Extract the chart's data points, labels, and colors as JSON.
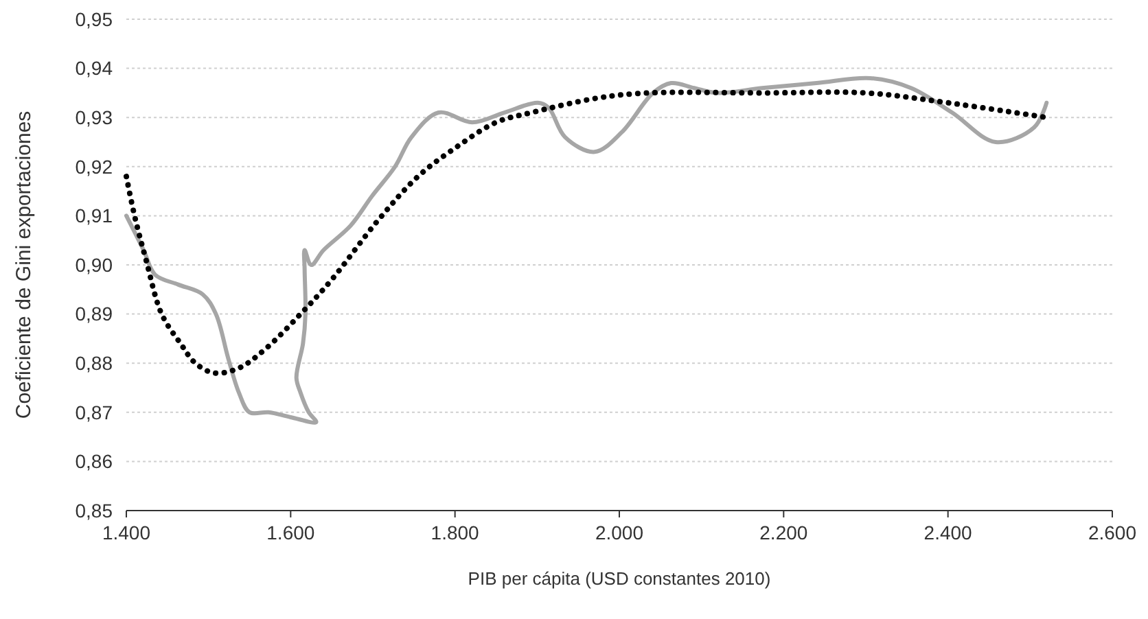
{
  "chart_data": {
    "type": "line",
    "xlabel": "PIB per cápita (USD constantes 2010)",
    "ylabel": "Coeficiente de Gini exportaciones",
    "xlim": [
      1400,
      2600
    ],
    "xticks": [
      {
        "value": 1400,
        "label": "1.400"
      },
      {
        "value": 1600,
        "label": "1.600"
      },
      {
        "value": 1800,
        "label": "1.800"
      },
      {
        "value": 2000,
        "label": "2.000"
      },
      {
        "value": 2200,
        "label": "2.200"
      },
      {
        "value": 2400,
        "label": "2.400"
      },
      {
        "value": 2600,
        "label": "2.600"
      }
    ],
    "ylim": [
      0.85,
      0.95
    ],
    "yticks": [
      {
        "value": 0.85,
        "label": "0,85"
      },
      {
        "value": 0.86,
        "label": "0,86"
      },
      {
        "value": 0.87,
        "label": "0,87"
      },
      {
        "value": 0.88,
        "label": "0,88"
      },
      {
        "value": 0.89,
        "label": "0,89"
      },
      {
        "value": 0.9,
        "label": "0,90"
      },
      {
        "value": 0.91,
        "label": "0,91"
      },
      {
        "value": 0.92,
        "label": "0,92"
      },
      {
        "value": 0.93,
        "label": "0,93"
      },
      {
        "value": 0.94,
        "label": "0,94"
      },
      {
        "value": 0.95,
        "label": "0,95"
      }
    ],
    "grid": "y",
    "marker": "none",
    "series": [
      {
        "color": "#a6a6a6",
        "line_style": "solid",
        "x": [
          1400,
          1421,
          1435,
          1463,
          1493,
          1509,
          1524,
          1537,
          1550,
          1573,
          1600,
          1631,
          1622,
          1612,
          1607,
          1615,
          1618,
          1617,
          1617,
          1625,
          1640,
          1673,
          1699,
          1727,
          1747,
          1780,
          1821,
          1860,
          1901,
          1914,
          1934,
          1970,
          2003,
          2041,
          2063,
          2091,
          2119,
          2174,
          2240,
          2306,
          2355,
          2405,
          2458,
          2505,
          2520
        ],
        "values": [
          0.91,
          0.903,
          0.898,
          0.896,
          0.894,
          0.89,
          0.881,
          0.874,
          0.87,
          0.87,
          0.869,
          0.868,
          0.87,
          0.874,
          0.877,
          0.884,
          0.89,
          0.899,
          0.903,
          0.9,
          0.903,
          0.908,
          0.914,
          0.92,
          0.926,
          0.931,
          0.929,
          0.931,
          0.933,
          0.932,
          0.926,
          0.923,
          0.927,
          0.935,
          0.937,
          0.936,
          0.935,
          0.936,
          0.937,
          0.938,
          0.936,
          0.931,
          0.925,
          0.928,
          0.933
        ]
      },
      {
        "color": "#000000",
        "line_style": "dotted",
        "x": [
          1400,
          1410,
          1424,
          1443,
          1466,
          1484,
          1507,
          1537,
          1570,
          1612,
          1650,
          1706,
          1755,
          1802,
          1850,
          1893,
          1975,
          2036,
          2174,
          2300,
          2400,
          2520
        ],
        "values": [
          0.918,
          0.91,
          0.901,
          0.89,
          0.884,
          0.88,
          0.878,
          0.879,
          0.883,
          0.89,
          0.897,
          0.909,
          0.918,
          0.924,
          0.929,
          0.931,
          0.934,
          0.935,
          0.935,
          0.935,
          0.933,
          0.93
        ]
      }
    ]
  }
}
